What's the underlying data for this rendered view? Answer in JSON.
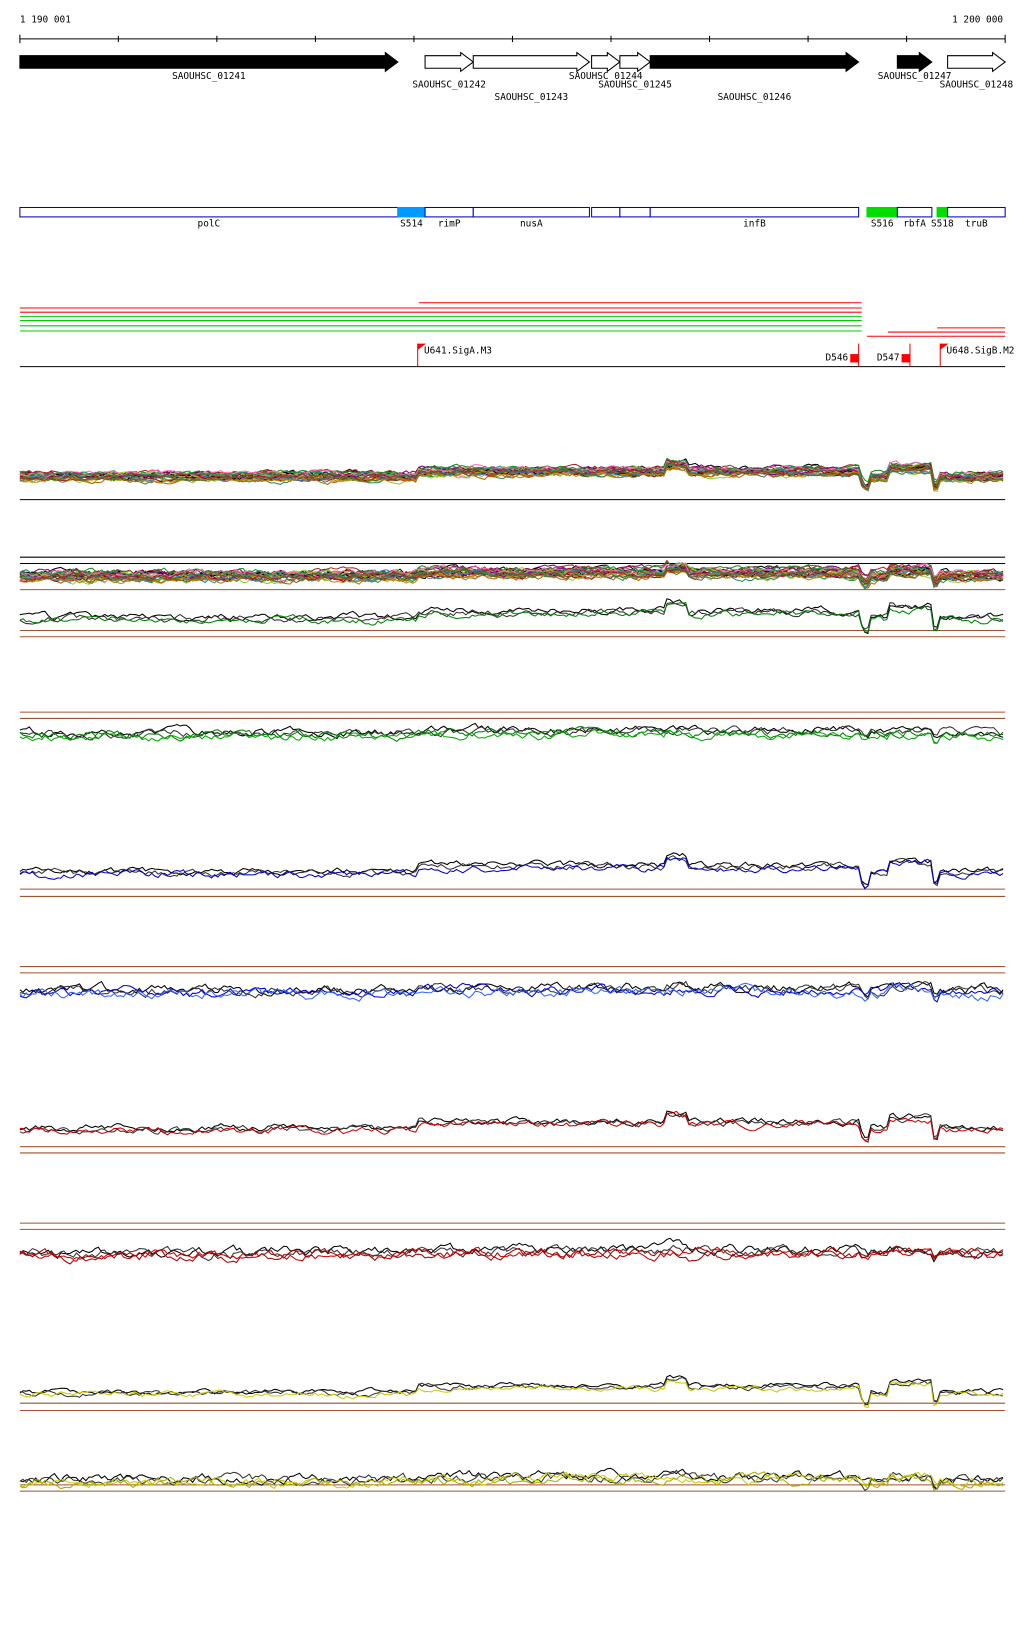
{
  "ruler": {
    "start_label": "1 190 001",
    "end_label": "1 200 000",
    "range": [
      1190001,
      1200000
    ],
    "ticks": [
      1191000,
      1192000,
      1193000,
      1194000,
      1195000,
      1196000,
      1197000,
      1198000,
      1199000
    ]
  },
  "genes": [
    {
      "name": "SAOUHSC_01241",
      "start": 1190001,
      "end": 1193837,
      "filled": true
    },
    {
      "name": "SAOUHSC_01242",
      "start": 1194113,
      "end": 1194602,
      "filled": false
    },
    {
      "name": "SAOUHSC_01243",
      "start": 1194602,
      "end": 1195781,
      "filled": false
    },
    {
      "name": "SAOUHSC_01244",
      "start": 1195803,
      "end": 1196090,
      "filled": false
    },
    {
      "name": "SAOUHSC_01245",
      "start": 1196090,
      "end": 1196398,
      "filled": false
    },
    {
      "name": "SAOUHSC_01246",
      "start": 1196398,
      "end": 1198513,
      "filled": true
    },
    {
      "name": "SAOUHSC_01247",
      "start": 1198906,
      "end": 1199256,
      "filled": true
    },
    {
      "name": "SAOUHSC_01248",
      "start": 1199416,
      "end": 1200000,
      "filled": false
    }
  ],
  "features": [
    {
      "label": "polC",
      "start": 1190001,
      "end": 1193837,
      "color": "#ffffff"
    },
    {
      "label": "S514",
      "start": 1193837,
      "end": 1194113,
      "color": "#0099ff"
    },
    {
      "label": "rimP",
      "start": 1194113,
      "end": 1194602,
      "color": "#ffffff"
    },
    {
      "label": "nusA",
      "start": 1194602,
      "end": 1195781,
      "color": "#ffffff"
    },
    {
      "label": null,
      "start": 1195803,
      "end": 1196090,
      "color": "#ffffff"
    },
    {
      "label": null,
      "start": 1196090,
      "end": 1196398,
      "color": "#ffffff"
    },
    {
      "label": "infB",
      "start": 1196398,
      "end": 1198513,
      "color": "#ffffff"
    },
    {
      "label": "S516",
      "start": 1198598,
      "end": 1198906,
      "color": "#00dd00"
    },
    {
      "label": "rbfA",
      "start": 1198906,
      "end": 1199256,
      "color": "#ffffff"
    },
    {
      "label": "S518",
      "start": 1199309,
      "end": 1199416,
      "color": "#00dd00"
    },
    {
      "label": "truB",
      "start": 1199416,
      "end": 1200000,
      "color": "#ffffff"
    }
  ],
  "promoters": [
    {
      "label": "U641.SigA.M3",
      "position": 1194038
    },
    {
      "label": "D546",
      "position": 1198513
    },
    {
      "label": "U648.SigB.M2",
      "position": 1199341
    },
    {
      "label": "D547",
      "position": 1199034
    }
  ]
}
